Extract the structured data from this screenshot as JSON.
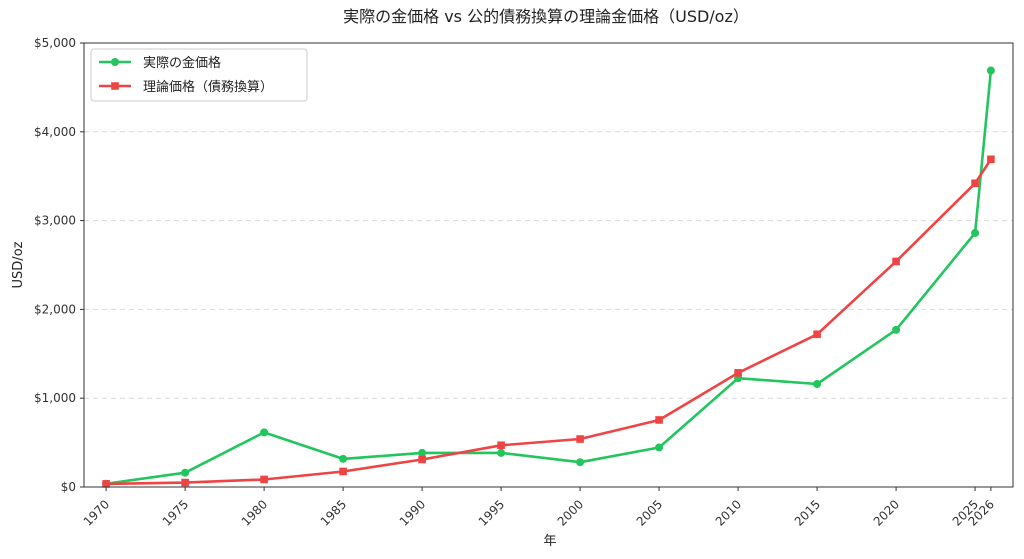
{
  "chart_data": {
    "type": "line",
    "title": "実際の金価格 vs 公的債務換算の理論金価格（USD/oz）",
    "xlabel": "年",
    "ylabel": "USD/oz",
    "xlim": [
      1968.6,
      2027.4
    ],
    "ylim": [
      0,
      5000
    ],
    "x_ticks": [
      1970,
      1975,
      1980,
      1985,
      1990,
      1995,
      2000,
      2005,
      2010,
      2015,
      2020,
      2025,
      2026
    ],
    "x_tick_labels": [
      "1970",
      "1975",
      "1980",
      "1985",
      "1990",
      "1995",
      "2000",
      "2005",
      "2010",
      "2015",
      "2020",
      "2025",
      "2026"
    ],
    "y_ticks": [
      0,
      1000,
      2000,
      3000,
      4000,
      5000
    ],
    "y_tick_labels": [
      "$0",
      "$1,000",
      "$2,000",
      "$3,000",
      "$4,000",
      "$5,000"
    ],
    "grid": "y-dashed",
    "legend_position": "top-left",
    "series": [
      {
        "name": "実際の金価格",
        "color": "#22c55e",
        "marker": "circle",
        "x": [
          1970,
          1975,
          1980,
          1985,
          1990,
          1995,
          2000,
          2005,
          2010,
          2015,
          2020,
          2025,
          2026
        ],
        "values": [
          36,
          161,
          615,
          317,
          384,
          384,
          279,
          445,
          1225,
          1160,
          1770,
          2860,
          4690
        ]
      },
      {
        "name": "理論価格（債務換算）",
        "color": "#ef4444",
        "marker": "square",
        "x": [
          1970,
          1975,
          1980,
          1985,
          1990,
          1995,
          2000,
          2005,
          2010,
          2015,
          2020,
          2025,
          2026
        ],
        "values": [
          35,
          50,
          85,
          175,
          310,
          470,
          540,
          755,
          1285,
          1720,
          2540,
          3420,
          3690
        ]
      }
    ]
  }
}
